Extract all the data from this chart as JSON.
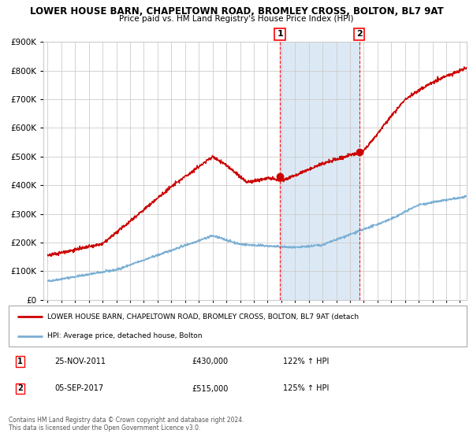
{
  "title_line1": "LOWER HOUSE BARN, CHAPELTOWN ROAD, BROMLEY CROSS, BOLTON, BL7 9AT",
  "title_line2": "Price paid vs. HM Land Registry's House Price Index (HPI)",
  "background_color": "#ffffff",
  "plot_bg_color": "#ffffff",
  "shaded_region_color": "#dce9f5",
  "grid_color": "#cccccc",
  "red_line_color": "#cc0000",
  "blue_line_color": "#7bafd4",
  "purchase1_price": 430000,
  "purchase1_hpi": "122% ↑ HPI",
  "purchase1_date_label": "25-NOV-2011",
  "purchase1_x": 2011.9,
  "purchase2_price": 515000,
  "purchase2_hpi": "125% ↑ HPI",
  "purchase2_date_label": "05-SEP-2017",
  "purchase2_x": 2017.67,
  "legend_label_red": "LOWER HOUSE BARN, CHAPELTOWN ROAD, BROMLEY CROSS, BOLTON, BL7 9AT (detach",
  "legend_label_blue": "HPI: Average price, detached house, Bolton",
  "footer_line1": "Contains HM Land Registry data © Crown copyright and database right 2024.",
  "footer_line2": "This data is licensed under the Open Government Licence v3.0.",
  "ylim": [
    0,
    900000
  ],
  "xlim_start": 1995,
  "xlim_end": 2025.5
}
